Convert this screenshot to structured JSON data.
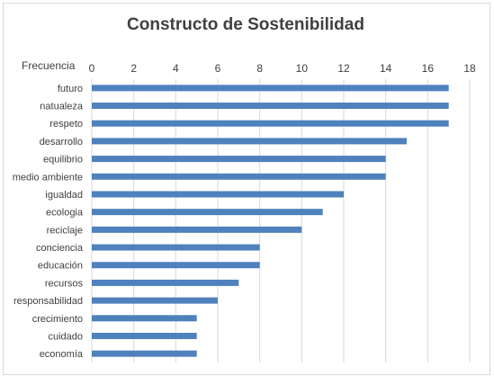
{
  "chart_data": {
    "type": "bar",
    "orientation": "horizontal",
    "title": "Constructo de Sostenibilidad",
    "xlabel": "Frecuencia",
    "ylabel": "",
    "categories": [
      "futuro",
      "natualeza",
      "respeto",
      "desarrollo",
      "equilibrio",
      "medio ambiente",
      "igualdad",
      "ecologia",
      "reciclaje",
      "conciencia",
      "educación",
      "recursos",
      "responsabilidad",
      "crecimiento",
      "cuidado",
      "economía"
    ],
    "values": [
      17,
      17,
      17,
      15,
      14,
      14,
      12,
      11,
      10,
      8,
      8,
      7,
      6,
      5,
      5,
      5
    ],
    "xlim": [
      0,
      18
    ],
    "xticks": [
      0,
      2,
      4,
      6,
      8,
      10,
      12,
      14,
      16,
      18
    ],
    "axis_position": "top",
    "grid": true,
    "legend": "none",
    "colors": {
      "bar": "#4f81bd",
      "grid": "#d9d9d9",
      "text": "#404040",
      "border": "#d9d9d9"
    }
  }
}
